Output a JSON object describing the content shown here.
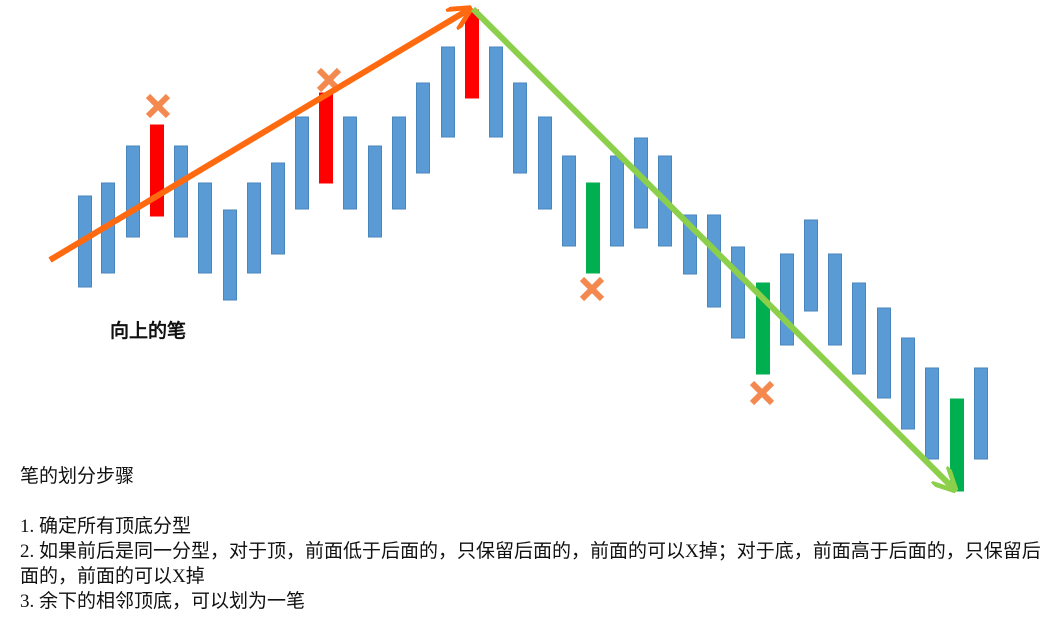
{
  "diagram": {
    "label": "向上的笔"
  },
  "steps": {
    "title": "笔的划分步骤",
    "items": [
      "1. 确定所有顶底分型",
      "2. 如果前后是同一分型，对于顶，前面低于后面的，只保留后面的，前面的可以X掉；对于底，前面高于后面的，只保留后面的，前面的可以X掉",
      "3. 余下的相邻顶底，可以划为一笔"
    ]
  }
}
